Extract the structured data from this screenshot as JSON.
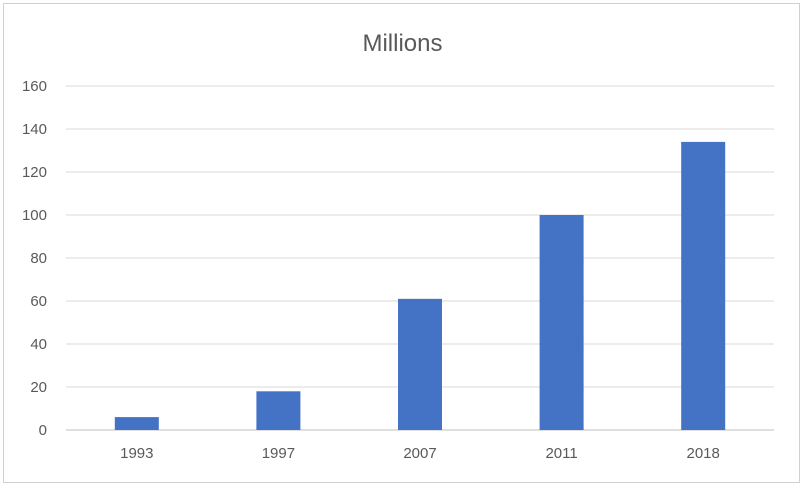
{
  "chart_data": {
    "type": "bar",
    "title": "Millions",
    "xlabel": "",
    "ylabel": "",
    "categories": [
      "1993",
      "1997",
      "2007",
      "2011",
      "2018"
    ],
    "values": [
      6,
      18,
      61,
      100,
      134
    ],
    "ylim": [
      0,
      160
    ],
    "yticks": [
      0,
      20,
      40,
      60,
      80,
      100,
      120,
      140,
      160
    ],
    "grid": true,
    "legend": "none",
    "colors": {
      "bar": "#4472C4",
      "grid": "#d9d9d9",
      "text": "#595959",
      "axis": "#bfbfbf"
    }
  }
}
